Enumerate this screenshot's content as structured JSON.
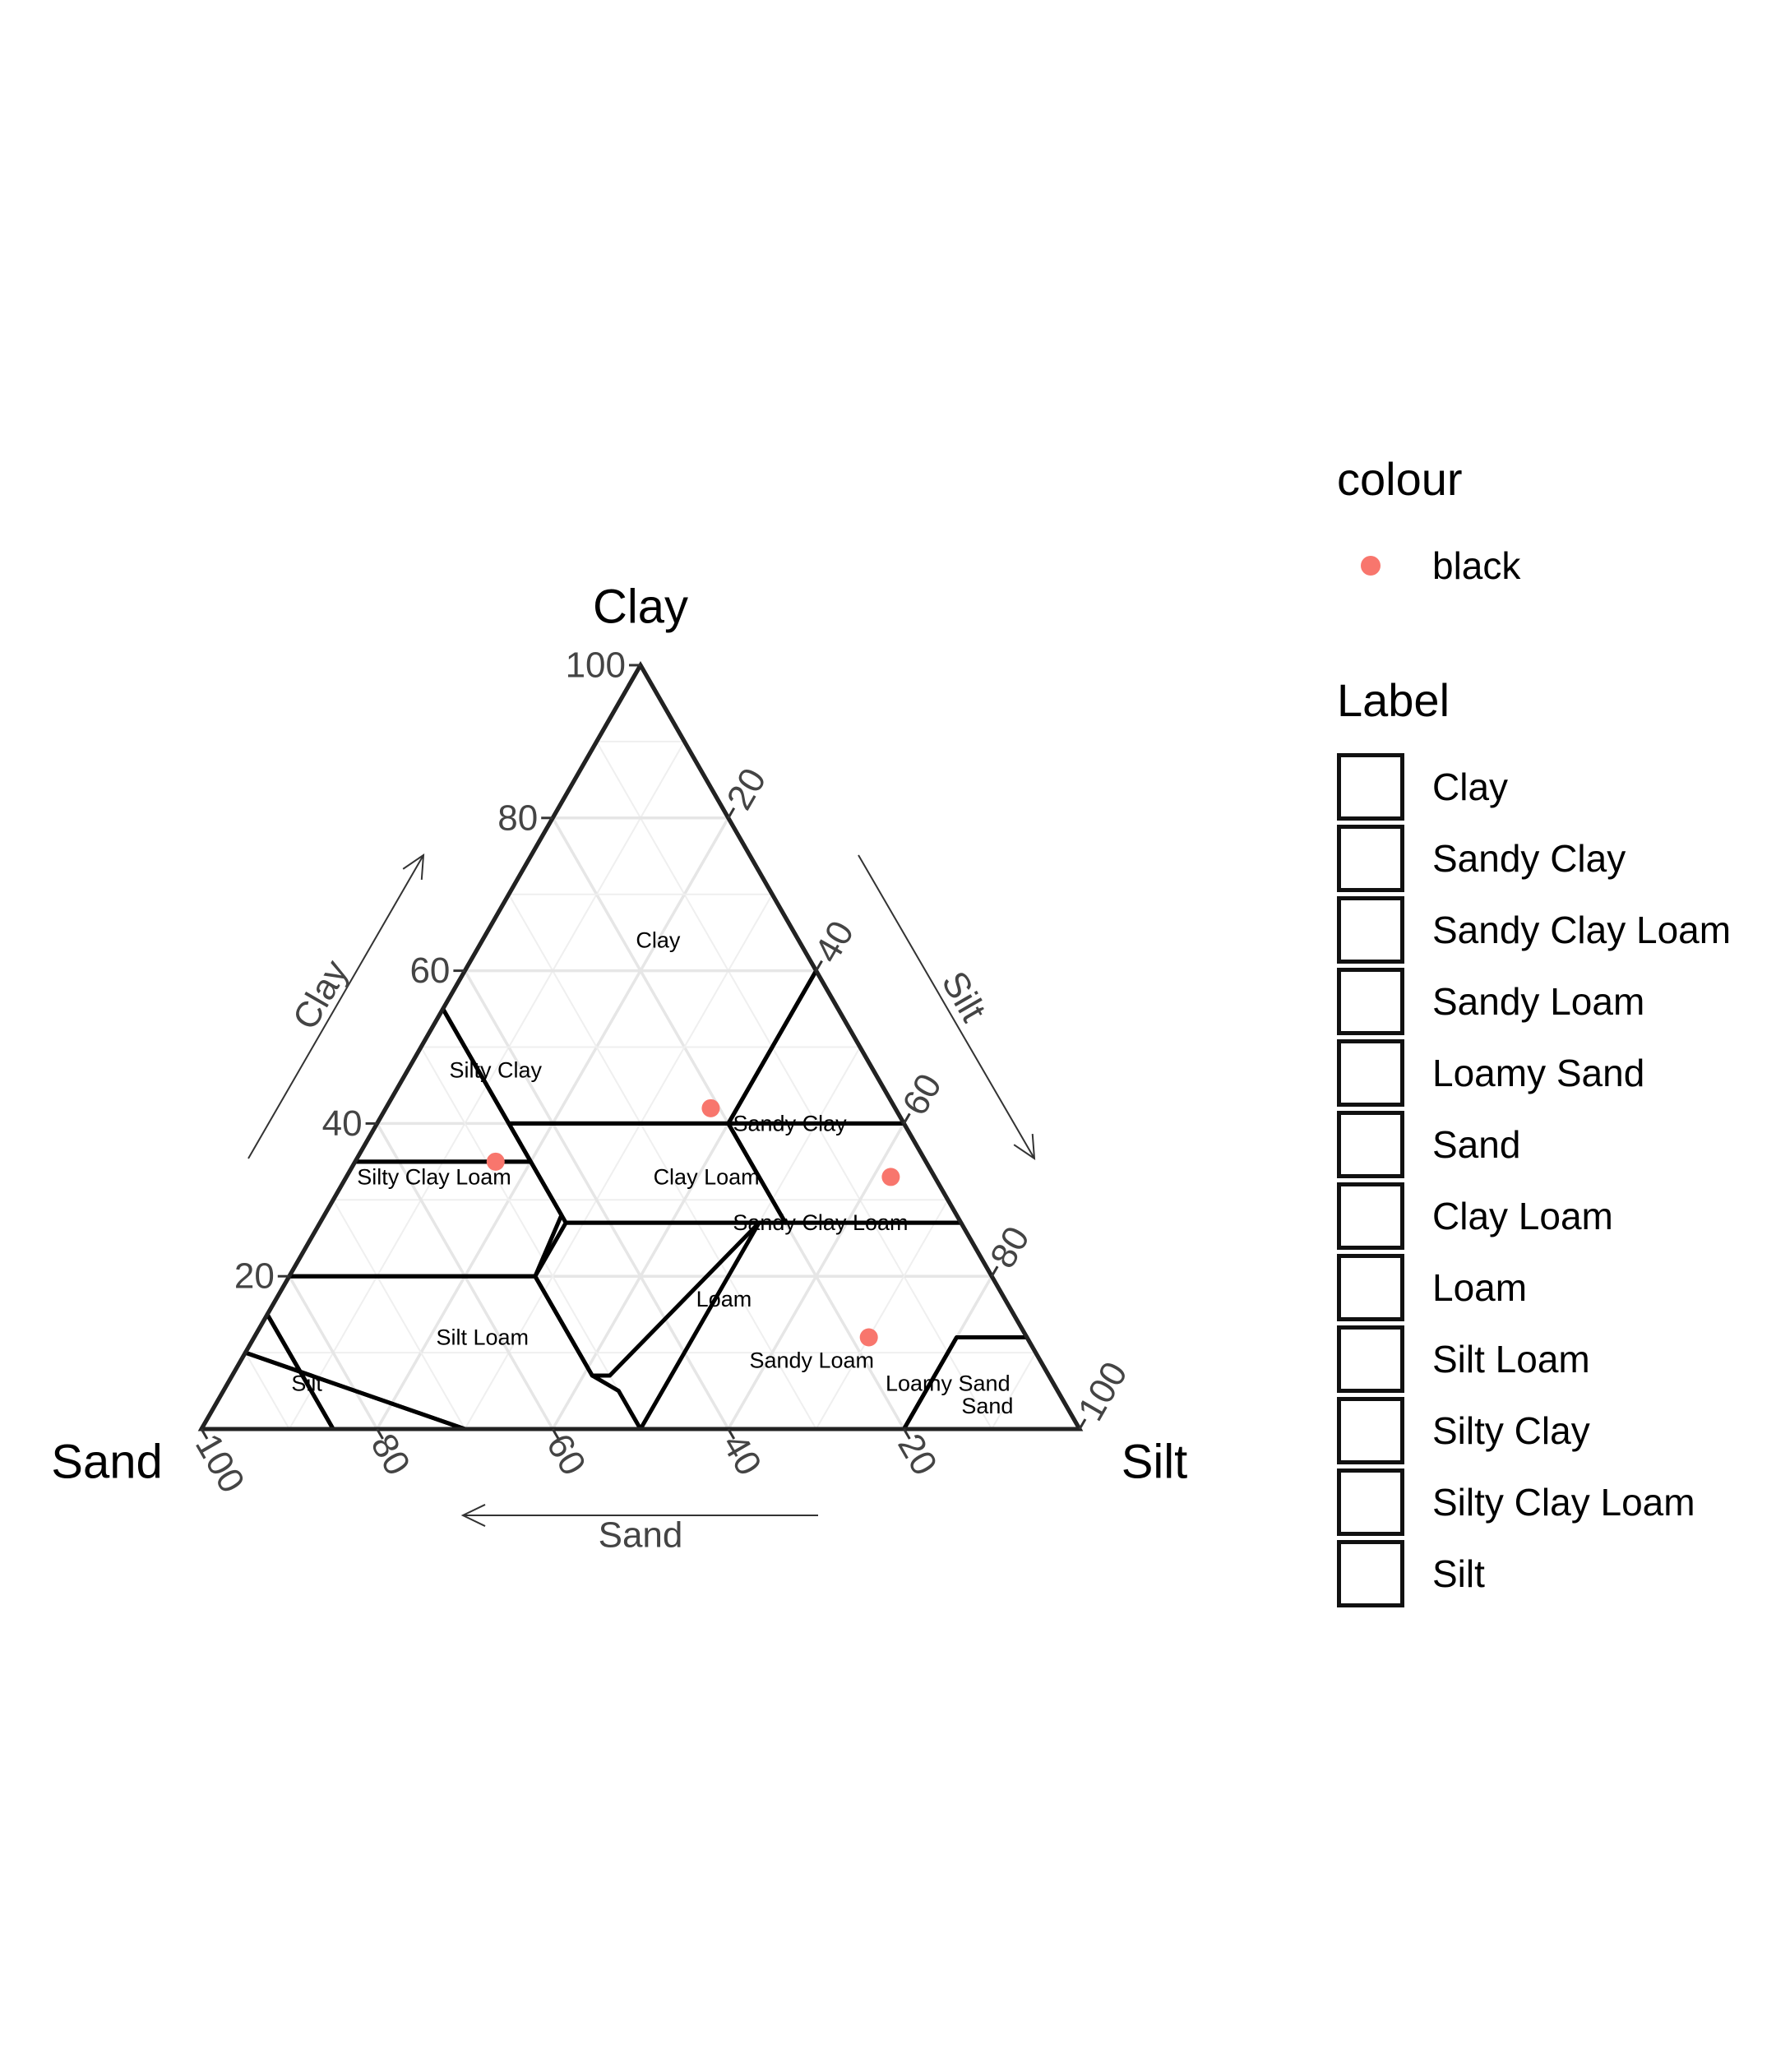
{
  "chart_data": {
    "type": "scatter",
    "subtype": "ternary",
    "axes": {
      "top": {
        "title": "Clay",
        "arrow_label": "Clay",
        "ticks": [
          "20",
          "40",
          "60",
          "80",
          "100"
        ]
      },
      "right": {
        "title": "Silt",
        "arrow_label": "Silt",
        "ticks": [
          "20",
          "40",
          "60",
          "80",
          "100"
        ]
      },
      "left": {
        "title": "Sand",
        "arrow_label": "Sand",
        "ticks": [
          "20",
          "40",
          "60",
          "80",
          "100"
        ]
      },
      "range": [
        0,
        100
      ],
      "grid": true
    },
    "regions": [
      {
        "name": "Clay",
        "label": "Clay",
        "polygon": [
          [
            100,
            0,
            0
          ],
          [
            55,
            45,
            0
          ],
          [
            40,
            45,
            15
          ],
          [
            40,
            20,
            40
          ],
          [
            60,
            0,
            40
          ]
        ],
        "label_at": [
          64,
          16,
          20
        ]
      },
      {
        "name": "Sandy Clay",
        "label": "Sandy Clay",
        "polygon": [
          [
            55,
            45,
            0
          ],
          [
            35,
            45,
            20
          ],
          [
            35,
            65,
            0
          ]
        ],
        "label_at": [
          40,
          13,
          47
        ]
      },
      {
        "name": "Sandy Clay Loam",
        "label": "Sandy Clay Loam",
        "polygon": [
          [
            35,
            45,
            20
          ],
          [
            28,
            45,
            27
          ],
          [
            20,
            52,
            28
          ],
          [
            20,
            80,
            0
          ],
          [
            35,
            65,
            0
          ]
        ],
        "label_at": [
          27,
          16,
          57
        ]
      },
      {
        "name": "Sandy Loam",
        "label": "Sandy Loam",
        "polygon": [
          [
            20,
            80,
            0
          ],
          [
            20,
            52,
            28
          ],
          [
            7,
            52,
            41
          ],
          [
            5,
            50,
            45
          ],
          [
            0,
            50,
            50
          ],
          [
            0,
            85,
            15
          ],
          [
            15,
            85,
            0
          ]
        ],
        "label_at": [
          9,
          26,
          65
        ]
      },
      {
        "name": "Loamy Sand",
        "label": "Loamy Sand",
        "polygon": [
          [
            15,
            85,
            0
          ],
          [
            0,
            85,
            15
          ],
          [
            0,
            70,
            30
          ],
          [
            10,
            90,
            0
          ]
        ],
        "label_at": [
          6,
          12,
          82
        ]
      },
      {
        "name": "Sand",
        "label": "Sand",
        "polygon": [
          [
            10,
            90,
            0
          ],
          [
            0,
            70,
            30
          ],
          [
            0,
            100,
            0
          ]
        ],
        "label_at": [
          3,
          9,
          88
        ]
      },
      {
        "name": "Clay Loam",
        "label": "Clay Loam",
        "polygon": [
          [
            40,
            45,
            15
          ],
          [
            40,
            20,
            40
          ],
          [
            27,
            20,
            53
          ],
          [
            27,
            45,
            28
          ]
        ],
        "label_at": [
          33,
          26,
          41
        ]
      },
      {
        "name": "Loam",
        "label": "Loam",
        "polygon": [
          [
            27,
            45,
            28
          ],
          [
            27,
            23,
            50
          ],
          [
            7,
            50,
            43
          ],
          [
            7,
            52,
            41
          ],
          [
            20,
            52,
            28
          ]
        ],
        "label_at": [
          17,
          32,
          51
        ]
      },
      {
        "name": "Silt Loam",
        "label": "Silt Loam",
        "polygon": [
          [
            27,
            0,
            73
          ],
          [
            27,
            23,
            50
          ],
          [
            0,
            50,
            50
          ],
          [
            0,
            20,
            80
          ],
          [
            12,
            8,
            80
          ],
          [
            12,
            0,
            88
          ]
        ],
        "label_at": [
          12,
          62,
          26
        ]
      },
      {
        "name": "Silty Clay",
        "label": "Silty Clay",
        "polygon": [
          [
            60,
            0,
            40
          ],
          [
            40,
            20,
            40
          ],
          [
            40,
            0,
            60
          ]
        ],
        "label_at": [
          47,
          43,
          10
        ]
      },
      {
        "name": "Silty Clay Loam",
        "label": "Silty Clay Loam",
        "polygon": [
          [
            40,
            20,
            40
          ],
          [
            40,
            0,
            60
          ],
          [
            27,
            0,
            73
          ],
          [
            27,
            20,
            53
          ]
        ],
        "label_at": [
          33,
          57,
          10
        ]
      },
      {
        "name": "Silt",
        "label": "Silt",
        "polygon": [
          [
            12,
            8,
            80
          ],
          [
            12,
            0,
            88
          ],
          [
            0,
            0,
            100
          ],
          [
            0,
            20,
            80
          ]
        ],
        "label_at": [
          6,
          85,
          9
        ]
      }
    ],
    "series": [
      {
        "name": "black",
        "color": "#F8766D",
        "points": [
          {
            "clay": 42,
            "silt": 37,
            "sand": 21
          },
          {
            "clay": 35,
            "silt": 16,
            "sand": 49
          },
          {
            "clay": 33,
            "silt": 62,
            "sand": 5
          },
          {
            "clay": 12,
            "silt": 70,
            "sand": 18
          }
        ]
      }
    ]
  },
  "legend": {
    "colour_title": "colour",
    "colour_entries": [
      {
        "label": "black",
        "color": "#F8766D"
      }
    ],
    "label_title": "Label",
    "label_entries": [
      "Clay",
      "Sandy Clay",
      "Sandy Clay Loam",
      "Sandy Loam",
      "Loamy Sand",
      "Sand",
      "Clay Loam",
      "Loam",
      "Silt Loam",
      "Silty Clay",
      "Silty Clay Loam",
      "Silt"
    ]
  }
}
